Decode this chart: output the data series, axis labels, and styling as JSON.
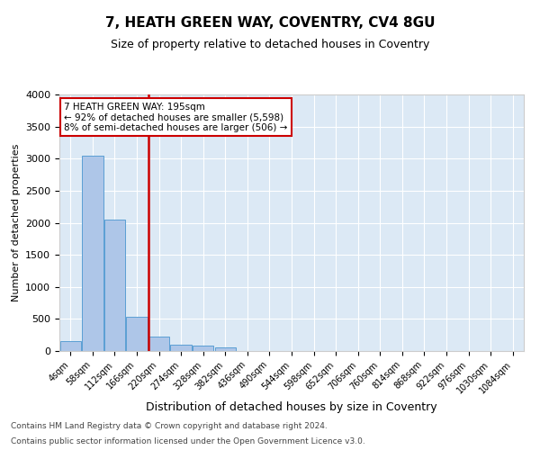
{
  "title": "7, HEATH GREEN WAY, COVENTRY, CV4 8GU",
  "subtitle": "Size of property relative to detached houses in Coventry",
  "xlabel": "Distribution of detached houses by size in Coventry",
  "ylabel": "Number of detached properties",
  "bin_labels": [
    "4sqm",
    "58sqm",
    "112sqm",
    "166sqm",
    "220sqm",
    "274sqm",
    "328sqm",
    "382sqm",
    "436sqm",
    "490sqm",
    "544sqm",
    "598sqm",
    "652sqm",
    "706sqm",
    "760sqm",
    "814sqm",
    "868sqm",
    "922sqm",
    "976sqm",
    "1030sqm",
    "1084sqm"
  ],
  "bar_values": [
    150,
    3050,
    2050,
    530,
    230,
    100,
    80,
    60,
    0,
    0,
    0,
    0,
    0,
    0,
    0,
    0,
    0,
    0,
    0,
    0,
    0
  ],
  "bar_color": "#aec6e8",
  "bar_edge_color": "#5a9fd4",
  "subject_label": "7 HEATH GREEN WAY: 195sqm",
  "annotation_smaller": "← 92% of detached houses are smaller (5,598)",
  "annotation_larger": "8% of semi-detached houses are larger (506) →",
  "annotation_box_color": "#ffffff",
  "annotation_box_edge": "#cc0000",
  "red_line_color": "#cc0000",
  "ylim": [
    0,
    4000
  ],
  "yticks": [
    0,
    500,
    1000,
    1500,
    2000,
    2500,
    3000,
    3500,
    4000
  ],
  "plot_bg_color": "#dce9f5",
  "footer1": "Contains HM Land Registry data © Crown copyright and database right 2024.",
  "footer2": "Contains public sector information licensed under the Open Government Licence v3.0."
}
